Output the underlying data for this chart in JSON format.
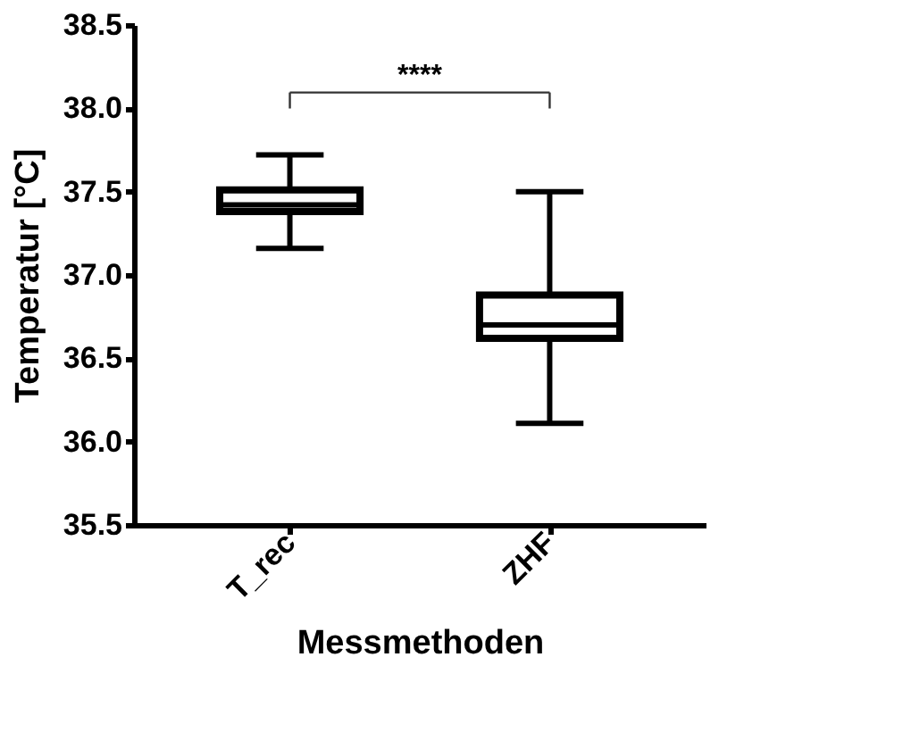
{
  "chart_data": {
    "type": "box",
    "xlabel": "Messmethoden",
    "ylabel": "Temperatur [°C]",
    "categories": [
      "T_rec",
      "ZHF"
    ],
    "boxes": [
      {
        "low": 37.16,
        "q1": 37.38,
        "median": 37.42,
        "q3": 37.51,
        "high": 37.72
      },
      {
        "low": 36.11,
        "q1": 36.62,
        "median": 36.7,
        "q3": 36.88,
        "high": 37.5
      }
    ],
    "color": "#000000",
    "ylim": [
      35.5,
      38.5
    ],
    "yticks": [
      35.5,
      {
        "value": 36,
        "label": "36.0"
      },
      36.5,
      {
        "value": 37,
        "label": "37.0"
      },
      37.5,
      {
        "value": 38,
        "label": "38.0"
      },
      38.5
    ],
    "annotations": [
      "****"
    ],
    "grid": false
  }
}
